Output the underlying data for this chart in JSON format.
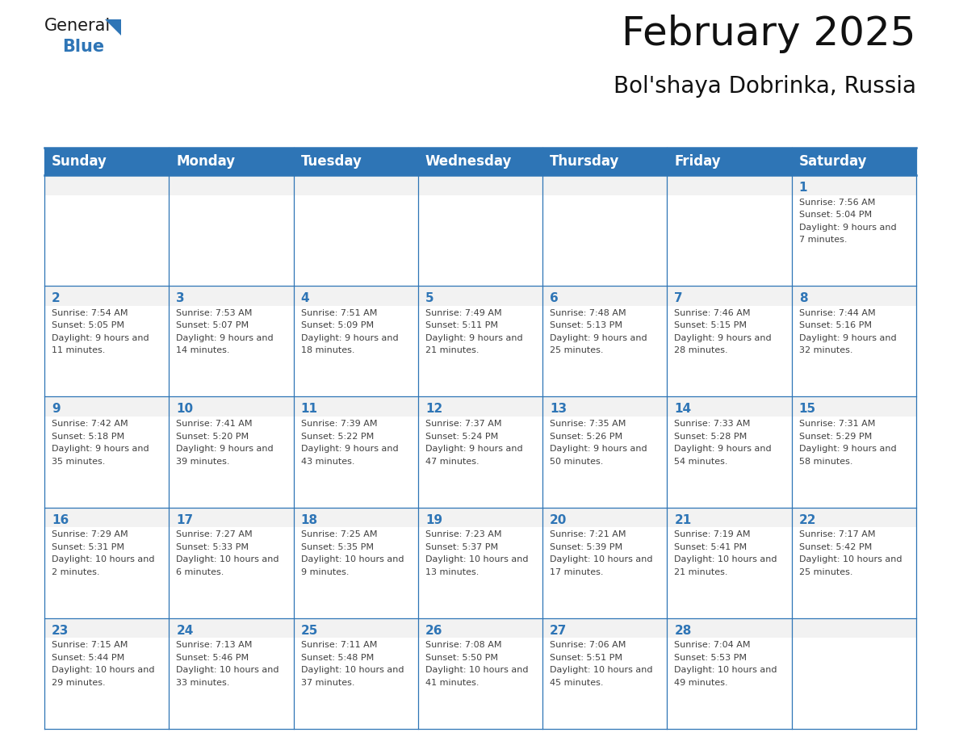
{
  "title": "February 2025",
  "subtitle": "Bol'shaya Dobrinka, Russia",
  "header_bg": "#2e75b6",
  "header_text_color": "#ffffff",
  "cell_bg_light": "#f2f2f2",
  "cell_bg_white": "#ffffff",
  "cell_border_color": "#2e75b6",
  "day_number_color": "#2e75b6",
  "cell_text_color": "#404040",
  "days_of_week": [
    "Sunday",
    "Monday",
    "Tuesday",
    "Wednesday",
    "Thursday",
    "Friday",
    "Saturday"
  ],
  "weeks": [
    [
      {
        "day": null,
        "sunrise": null,
        "sunset": null,
        "daylight": null
      },
      {
        "day": null,
        "sunrise": null,
        "sunset": null,
        "daylight": null
      },
      {
        "day": null,
        "sunrise": null,
        "sunset": null,
        "daylight": null
      },
      {
        "day": null,
        "sunrise": null,
        "sunset": null,
        "daylight": null
      },
      {
        "day": null,
        "sunrise": null,
        "sunset": null,
        "daylight": null
      },
      {
        "day": null,
        "sunrise": null,
        "sunset": null,
        "daylight": null
      },
      {
        "day": 1,
        "sunrise": "7:56 AM",
        "sunset": "5:04 PM",
        "daylight": "9 hours and 7 minutes"
      }
    ],
    [
      {
        "day": 2,
        "sunrise": "7:54 AM",
        "sunset": "5:05 PM",
        "daylight": "9 hours and 11 minutes"
      },
      {
        "day": 3,
        "sunrise": "7:53 AM",
        "sunset": "5:07 PM",
        "daylight": "9 hours and 14 minutes"
      },
      {
        "day": 4,
        "sunrise": "7:51 AM",
        "sunset": "5:09 PM",
        "daylight": "9 hours and 18 minutes"
      },
      {
        "day": 5,
        "sunrise": "7:49 AM",
        "sunset": "5:11 PM",
        "daylight": "9 hours and 21 minutes"
      },
      {
        "day": 6,
        "sunrise": "7:48 AM",
        "sunset": "5:13 PM",
        "daylight": "9 hours and 25 minutes"
      },
      {
        "day": 7,
        "sunrise": "7:46 AM",
        "sunset": "5:15 PM",
        "daylight": "9 hours and 28 minutes"
      },
      {
        "day": 8,
        "sunrise": "7:44 AM",
        "sunset": "5:16 PM",
        "daylight": "9 hours and 32 minutes"
      }
    ],
    [
      {
        "day": 9,
        "sunrise": "7:42 AM",
        "sunset": "5:18 PM",
        "daylight": "9 hours and 35 minutes"
      },
      {
        "day": 10,
        "sunrise": "7:41 AM",
        "sunset": "5:20 PM",
        "daylight": "9 hours and 39 minutes"
      },
      {
        "day": 11,
        "sunrise": "7:39 AM",
        "sunset": "5:22 PM",
        "daylight": "9 hours and 43 minutes"
      },
      {
        "day": 12,
        "sunrise": "7:37 AM",
        "sunset": "5:24 PM",
        "daylight": "9 hours and 47 minutes"
      },
      {
        "day": 13,
        "sunrise": "7:35 AM",
        "sunset": "5:26 PM",
        "daylight": "9 hours and 50 minutes"
      },
      {
        "day": 14,
        "sunrise": "7:33 AM",
        "sunset": "5:28 PM",
        "daylight": "9 hours and 54 minutes"
      },
      {
        "day": 15,
        "sunrise": "7:31 AM",
        "sunset": "5:29 PM",
        "daylight": "9 hours and 58 minutes"
      }
    ],
    [
      {
        "day": 16,
        "sunrise": "7:29 AM",
        "sunset": "5:31 PM",
        "daylight": "10 hours and 2 minutes"
      },
      {
        "day": 17,
        "sunrise": "7:27 AM",
        "sunset": "5:33 PM",
        "daylight": "10 hours and 6 minutes"
      },
      {
        "day": 18,
        "sunrise": "7:25 AM",
        "sunset": "5:35 PM",
        "daylight": "10 hours and 9 minutes"
      },
      {
        "day": 19,
        "sunrise": "7:23 AM",
        "sunset": "5:37 PM",
        "daylight": "10 hours and 13 minutes"
      },
      {
        "day": 20,
        "sunrise": "7:21 AM",
        "sunset": "5:39 PM",
        "daylight": "10 hours and 17 minutes"
      },
      {
        "day": 21,
        "sunrise": "7:19 AM",
        "sunset": "5:41 PM",
        "daylight": "10 hours and 21 minutes"
      },
      {
        "day": 22,
        "sunrise": "7:17 AM",
        "sunset": "5:42 PM",
        "daylight": "10 hours and 25 minutes"
      }
    ],
    [
      {
        "day": 23,
        "sunrise": "7:15 AM",
        "sunset": "5:44 PM",
        "daylight": "10 hours and 29 minutes"
      },
      {
        "day": 24,
        "sunrise": "7:13 AM",
        "sunset": "5:46 PM",
        "daylight": "10 hours and 33 minutes"
      },
      {
        "day": 25,
        "sunrise": "7:11 AM",
        "sunset": "5:48 PM",
        "daylight": "10 hours and 37 minutes"
      },
      {
        "day": 26,
        "sunrise": "7:08 AM",
        "sunset": "5:50 PM",
        "daylight": "10 hours and 41 minutes"
      },
      {
        "day": 27,
        "sunrise": "7:06 AM",
        "sunset": "5:51 PM",
        "daylight": "10 hours and 45 minutes"
      },
      {
        "day": 28,
        "sunrise": "7:04 AM",
        "sunset": "5:53 PM",
        "daylight": "10 hours and 49 minutes"
      },
      {
        "day": null,
        "sunrise": null,
        "sunset": null,
        "daylight": null
      }
    ]
  ],
  "logo_text_general": "General",
  "logo_text_blue": "Blue",
  "logo_triangle_color": "#2e75b6",
  "title_fontsize": 36,
  "subtitle_fontsize": 20,
  "header_fontsize": 12,
  "day_num_fontsize": 11,
  "cell_text_fontsize": 8
}
